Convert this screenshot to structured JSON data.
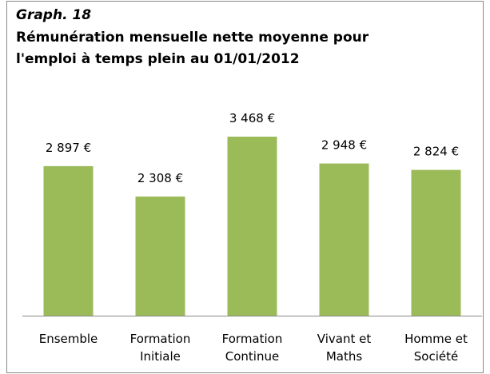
{
  "chart_data": {
    "type": "bar",
    "label": "Graph. 18",
    "title": [
      "Rémunération mensuelle nette moyenne pour",
      "l'emploi à temps plein au 01/01/2012"
    ],
    "categories": [
      "Ensemble",
      "Formation Initiale",
      "Formation Continue",
      "Vivant et Maths",
      "Homme et Société"
    ],
    "values": [
      2897,
      2308,
      3468,
      2948,
      2824
    ],
    "value_labels": [
      "2 897 €",
      "2 308 €",
      "3 468 €",
      "2 948 €",
      "2 824 €"
    ],
    "color": "#9bbb59"
  }
}
